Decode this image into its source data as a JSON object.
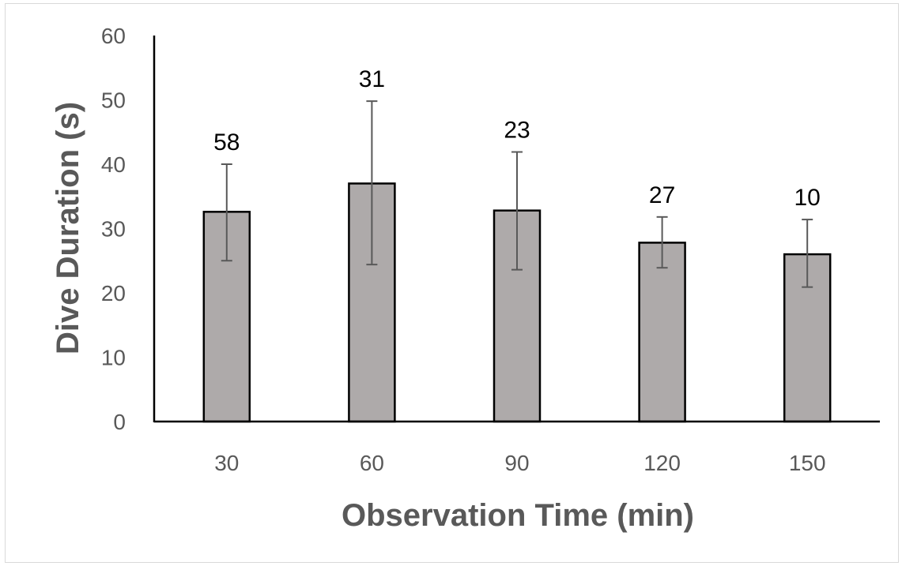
{
  "chart_data": {
    "type": "bar",
    "title": "",
    "xlabel": "Observation Time (min)",
    "ylabel": "Dive Duration (s)",
    "categories": [
      "30",
      "60",
      "90",
      "120",
      "150"
    ],
    "series": [
      {
        "values": [
          32.6,
          37.0,
          32.8,
          27.8,
          26.0
        ],
        "error_low": [
          25.0,
          24.4,
          23.6,
          23.9,
          20.9
        ],
        "error_high": [
          40.0,
          49.8,
          41.9,
          31.8,
          31.4
        ],
        "data_labels": [
          "58",
          "31",
          "23",
          "27",
          "10"
        ]
      }
    ],
    "ylim": [
      0,
      60
    ],
    "yticks": [
      "0",
      "10",
      "20",
      "30",
      "40",
      "50",
      "60"
    ],
    "grid": false,
    "legend": "none",
    "colors": {
      "bar_fill": "#aeaaaa",
      "bar_stroke": "#000000",
      "error_bar": "#595959",
      "axis": "#000000"
    }
  }
}
